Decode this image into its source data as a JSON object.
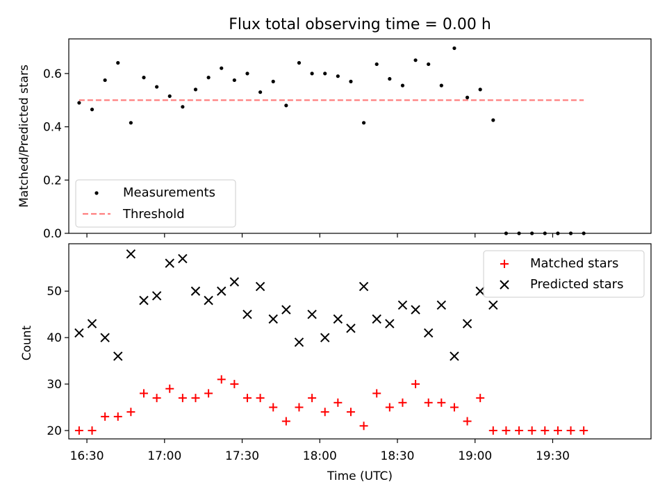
{
  "chart_data": [
    {
      "type": "scatter",
      "title": "Flux total observing time = 0.00 h",
      "xlabel": "",
      "ylabel": "Matched/Predicted stars",
      "xlim": [
        "16:23",
        "20:08"
      ],
      "ylim": [
        0.0,
        0.73
      ],
      "y_ticks": [
        0.0,
        0.2,
        0.4,
        0.6
      ],
      "y_tick_labels": [
        "0.0",
        "0.2",
        "0.4",
        "0.6"
      ],
      "grid": false,
      "legend_position": "lower-left",
      "series": [
        {
          "name": "Measurements",
          "style": "marker",
          "marker": "dot",
          "color": "#000000",
          "x": [
            "16:27",
            "16:32",
            "16:37",
            "16:42",
            "16:47",
            "16:52",
            "16:57",
            "17:02",
            "17:07",
            "17:12",
            "17:17",
            "17:22",
            "17:27",
            "17:32",
            "17:37",
            "17:42",
            "17:47",
            "17:52",
            "17:57",
            "18:02",
            "18:07",
            "18:12",
            "18:17",
            "18:22",
            "18:27",
            "18:32",
            "18:37",
            "18:42",
            "18:47",
            "18:52",
            "18:57",
            "19:02",
            "19:07",
            "19:12",
            "19:17",
            "19:22",
            "19:27",
            "19:32",
            "19:37",
            "19:42"
          ],
          "y": [
            0.49,
            0.465,
            0.575,
            0.64,
            0.415,
            0.585,
            0.55,
            0.515,
            0.475,
            0.54,
            0.585,
            0.62,
            0.575,
            0.6,
            0.53,
            0.57,
            0.48,
            0.64,
            0.6,
            0.6,
            0.59,
            0.57,
            0.415,
            0.635,
            0.58,
            0.555,
            0.65,
            0.635,
            0.555,
            0.695,
            0.51,
            0.54,
            0.425,
            0.0,
            0.0,
            0.0,
            0.0,
            0.0,
            0.0,
            0.0
          ]
        },
        {
          "name": "Threshold",
          "style": "dashed-line",
          "color": "#ff7f7f",
          "x": [
            "16:27",
            "19:42"
          ],
          "y": [
            0.5,
            0.5
          ]
        }
      ]
    },
    {
      "type": "scatter",
      "title": "",
      "xlabel": "Time (UTC)",
      "ylabel": "Count",
      "xlim": [
        "16:23",
        "20:08"
      ],
      "ylim": [
        18.2,
        60.2
      ],
      "x_ticks": [
        "16:30",
        "17:00",
        "17:30",
        "18:00",
        "18:30",
        "19:00",
        "19:30"
      ],
      "y_ticks": [
        20,
        30,
        40,
        50
      ],
      "y_tick_labels": [
        "20",
        "30",
        "40",
        "50"
      ],
      "grid": false,
      "legend_position": "upper-right",
      "series": [
        {
          "name": "Matched stars",
          "marker": "plus",
          "color": "#ff0000",
          "x": [
            "16:27",
            "16:32",
            "16:37",
            "16:42",
            "16:47",
            "16:52",
            "16:57",
            "17:02",
            "17:07",
            "17:12",
            "17:17",
            "17:22",
            "17:27",
            "17:32",
            "17:37",
            "17:42",
            "17:47",
            "17:52",
            "17:57",
            "18:02",
            "18:07",
            "18:12",
            "18:17",
            "18:22",
            "18:27",
            "18:32",
            "18:37",
            "18:42",
            "18:47",
            "18:52",
            "18:57",
            "19:02",
            "19:07",
            "19:12",
            "19:17",
            "19:22",
            "19:27",
            "19:32",
            "19:37",
            "19:42"
          ],
          "y": [
            20,
            20,
            23,
            23,
            24,
            28,
            27,
            29,
            27,
            27,
            28,
            31,
            30,
            27,
            27,
            25,
            22,
            25,
            27,
            24,
            26,
            24,
            21,
            28,
            25,
            26,
            30,
            26,
            26,
            25,
            22,
            27,
            20,
            20,
            20,
            20,
            20,
            20,
            20,
            20
          ]
        },
        {
          "name": "Predicted stars",
          "marker": "x",
          "color": "#000000",
          "x": [
            "16:27",
            "16:32",
            "16:37",
            "16:42",
            "16:47",
            "16:52",
            "16:57",
            "17:02",
            "17:07",
            "17:12",
            "17:17",
            "17:22",
            "17:27",
            "17:32",
            "17:37",
            "17:42",
            "17:47",
            "17:52",
            "17:57",
            "18:02",
            "18:07",
            "18:12",
            "18:17",
            "18:22",
            "18:27",
            "18:32",
            "18:37",
            "18:42",
            "18:47",
            "18:52",
            "18:57",
            "19:02",
            "19:07"
          ],
          "y": [
            41,
            43,
            40,
            36,
            58,
            48,
            49,
            56,
            57,
            50,
            48,
            50,
            52,
            45,
            51,
            44,
            46,
            39,
            45,
            40,
            44,
            42,
            51,
            44,
            43,
            47,
            46,
            41,
            47,
            36,
            43,
            50,
            47
          ]
        }
      ]
    }
  ]
}
